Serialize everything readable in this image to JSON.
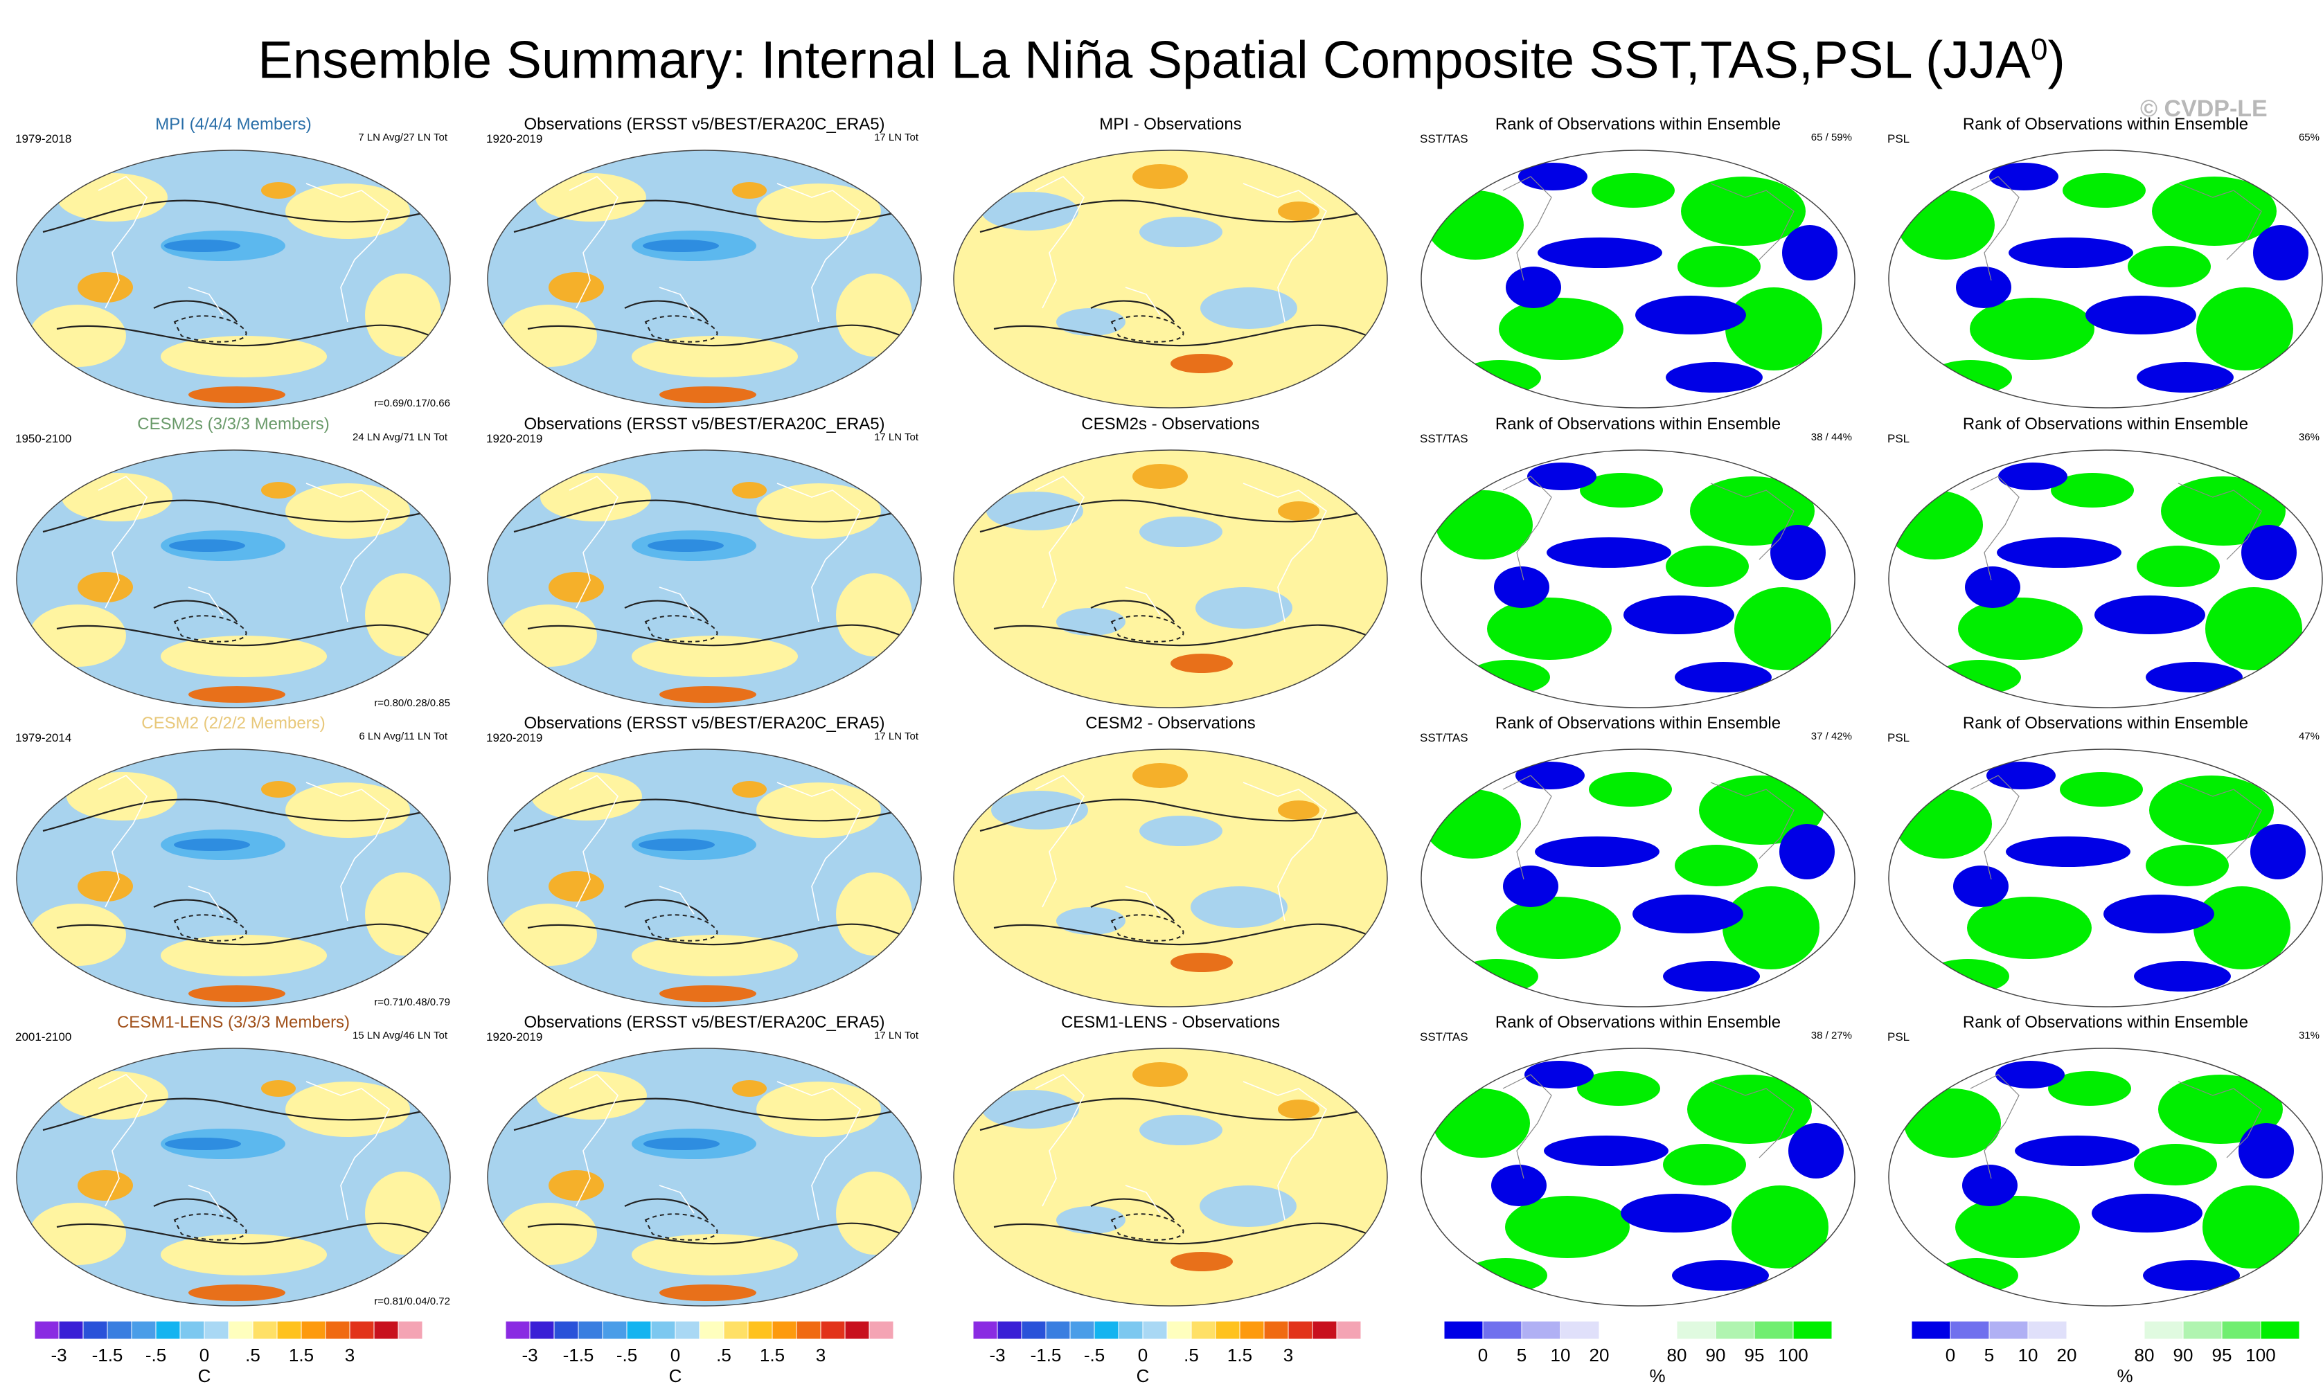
{
  "title": {
    "main": "Ensemble Summary: Internal La Niña Spatial Composite SST,TAS,PSL (JJA",
    "sup": "0",
    "close": ")"
  },
  "watermark": "© CVDP-LE",
  "colors": {
    "ocean_light_blue": "#a8d3ee",
    "ocean_mid_blue": "#5cb8ee",
    "ocean_deep_blue": "#2e8de0",
    "pale_yellow": "#fff4a0",
    "orange": "#f5b02a",
    "dark_orange": "#e8701a",
    "rank_blue": "#0000e6",
    "rank_green": "#00ee00"
  },
  "rows": [
    {
      "model": "MPI (4/4/4 Members)",
      "model_color": "#2a6fa8",
      "model_years": "1979-2018",
      "model_counts": "7 LN Avg/27 LN Tot",
      "corr": "r=0.69/0.17/0.66",
      "obs_title": "Observations (ERSST v5/BEST/ERA20C_ERA5)",
      "obs_years": "1920-2019",
      "obs_counts": "17 LN Tot",
      "diff_title": "MPI - Observations",
      "rank_title": "Rank of Observations within Ensemble",
      "rank_sst_label": "SST/TAS",
      "rank_sst_value": "65 /  59%",
      "rank_psl_label": "PSL",
      "rank_psl_value": "65%"
    },
    {
      "model": "CESM2s (3/3/3 Members)",
      "model_color": "#6a9a6a",
      "model_years": "1950-2100",
      "model_counts": "24 LN Avg/71 LN Tot",
      "corr": "r=0.80/0.28/0.85",
      "obs_title": "Observations (ERSST v5/BEST/ERA20C_ERA5)",
      "obs_years": "1920-2019",
      "obs_counts": "17 LN Tot",
      "diff_title": "CESM2s - Observations",
      "rank_title": "Rank of Observations within Ensemble",
      "rank_sst_label": "SST/TAS",
      "rank_sst_value": "38 /  44%",
      "rank_psl_label": "PSL",
      "rank_psl_value": "36%"
    },
    {
      "model": "CESM2 (2/2/2 Members)",
      "model_color": "#e8c87a",
      "model_years": "1979-2014",
      "model_counts": "6 LN Avg/11 LN Tot",
      "corr": "r=0.71/0.48/0.79",
      "obs_title": "Observations (ERSST v5/BEST/ERA20C_ERA5)",
      "obs_years": "1920-2019",
      "obs_counts": "17 LN Tot",
      "diff_title": "CESM2 - Observations",
      "rank_title": "Rank of Observations within Ensemble",
      "rank_sst_label": "SST/TAS",
      "rank_sst_value": "37 /  42%",
      "rank_psl_label": "PSL",
      "rank_psl_value": "47%"
    },
    {
      "model": "CESM1-LENS (3/3/3 Members)",
      "model_color": "#a0501a",
      "model_years": "2001-2100",
      "model_counts": "15 LN Avg/46 LN Tot",
      "corr": "r=0.81/0.04/0.72",
      "obs_title": "Observations (ERSST v5/BEST/ERA20C_ERA5)",
      "obs_years": "1920-2019",
      "obs_counts": "17 LN Tot",
      "diff_title": "CESM1-LENS - Observations",
      "rank_title": "Rank of Observations within Ensemble",
      "rank_sst_label": "SST/TAS",
      "rank_sst_value": "38 /  27%",
      "rank_psl_label": "PSL",
      "rank_psl_value": "31%"
    }
  ],
  "colorbars": {
    "temp": {
      "colors": [
        "#8a2be2",
        "#3a1fd6",
        "#2a52d9",
        "#3a7ee0",
        "#4a9de8",
        "#14b4f0",
        "#7cc8f0",
        "#a9d8f4",
        "#ffffbe",
        "#ffe066",
        "#ffc21e",
        "#fd9a0e",
        "#f06a12",
        "#e2331a",
        "#c8101e",
        "#f4a4b4"
      ],
      "ticks": [
        "-3",
        "-1.5",
        "-.5",
        "0",
        ".5",
        "1.5",
        "3"
      ],
      "tick_bounds": [
        1,
        3,
        5,
        7,
        9,
        11,
        13
      ],
      "unit": "C"
    },
    "rank": {
      "colors": [
        "#0000e6",
        "#7070ee",
        "#b0b0f4",
        "#e0e0fa",
        "#ffffff",
        "#ffffff",
        "#e0fae0",
        "#b0f4b0",
        "#70ee70",
        "#00ee00"
      ],
      "ticks": [
        "0",
        "5",
        "10",
        "20",
        "80",
        "90",
        "95",
        "100"
      ],
      "tick_bounds": [
        1,
        2,
        3,
        4,
        6,
        7,
        8,
        9
      ],
      "unit": "%"
    }
  }
}
